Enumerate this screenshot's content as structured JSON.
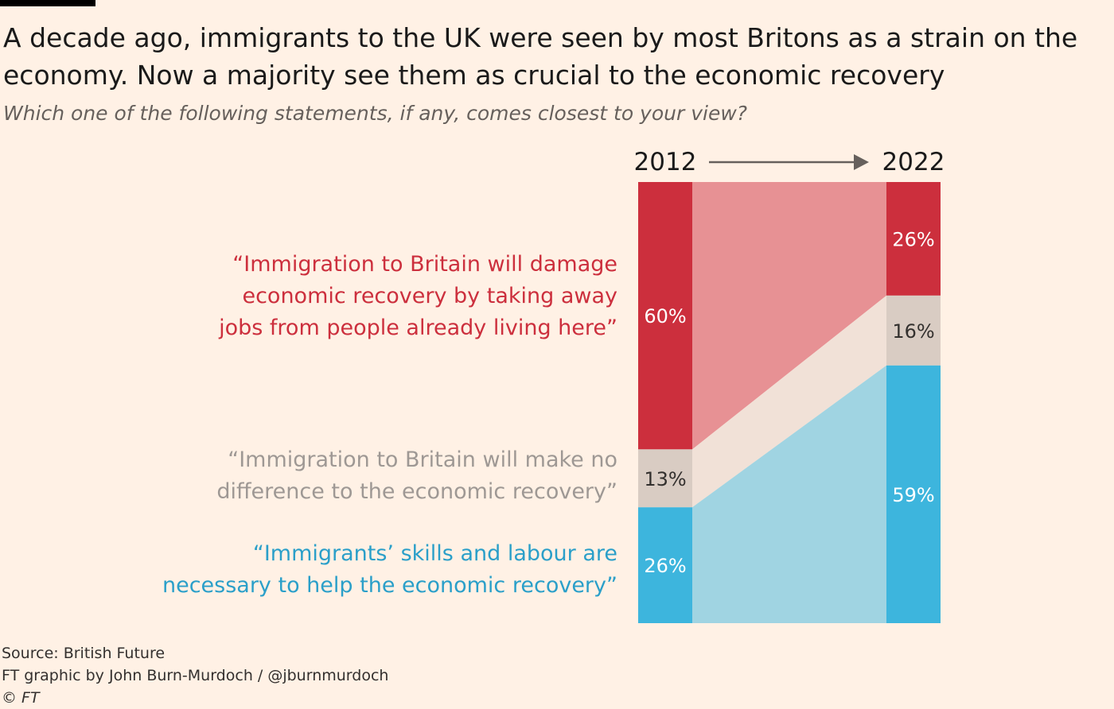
{
  "title": "A decade ago, immigrants to the UK were seen by most Britons as a strain on the economy. Now a majority see them as crucial to the economic recovery",
  "subtitle": "Which one of the following statements, if any, comes closest to your view?",
  "footer": {
    "source": "Source: British Future",
    "credit": "FT graphic by John Burn-Murdoch / @jburnmurdoch",
    "copyright": "© FT"
  },
  "chart_data": {
    "type": "bar",
    "stacked": true,
    "categories": [
      "2012",
      "2022"
    ],
    "series": [
      {
        "name_lines": [
          "“Immigration to Britain will damage",
          "economic recovery by taking away",
          "jobs from people already living here”"
        ],
        "values": [
          60,
          26
        ],
        "labels": [
          "60%",
          "26%"
        ],
        "color": "#CC2F3D",
        "flow_color": "#E79194",
        "label_text_color": "#FFFFFF",
        "legend_color": "#CC2F3D"
      },
      {
        "name_lines": [
          "“Immigration to Britain will make no",
          "difference to the economic recovery”"
        ],
        "values": [
          13,
          16
        ],
        "labels": [
          "13%",
          "16%"
        ],
        "color": "#D9CCC3",
        "flow_color": "#F1E1D7",
        "label_text_color": "#33302E",
        "legend_color": "#9E9894"
      },
      {
        "name_lines": [
          "“Immigrants’ skills and labour are",
          "necessary to help the economic recovery”"
        ],
        "values": [
          26,
          59
        ],
        "labels": [
          "26%",
          "59%"
        ],
        "color": "#3DB5DD",
        "flow_color": "#A0D4E2",
        "label_text_color": "#FFFFFF",
        "legend_color": "#2A9FC9"
      }
    ],
    "arrow_color": "#66605C"
  }
}
